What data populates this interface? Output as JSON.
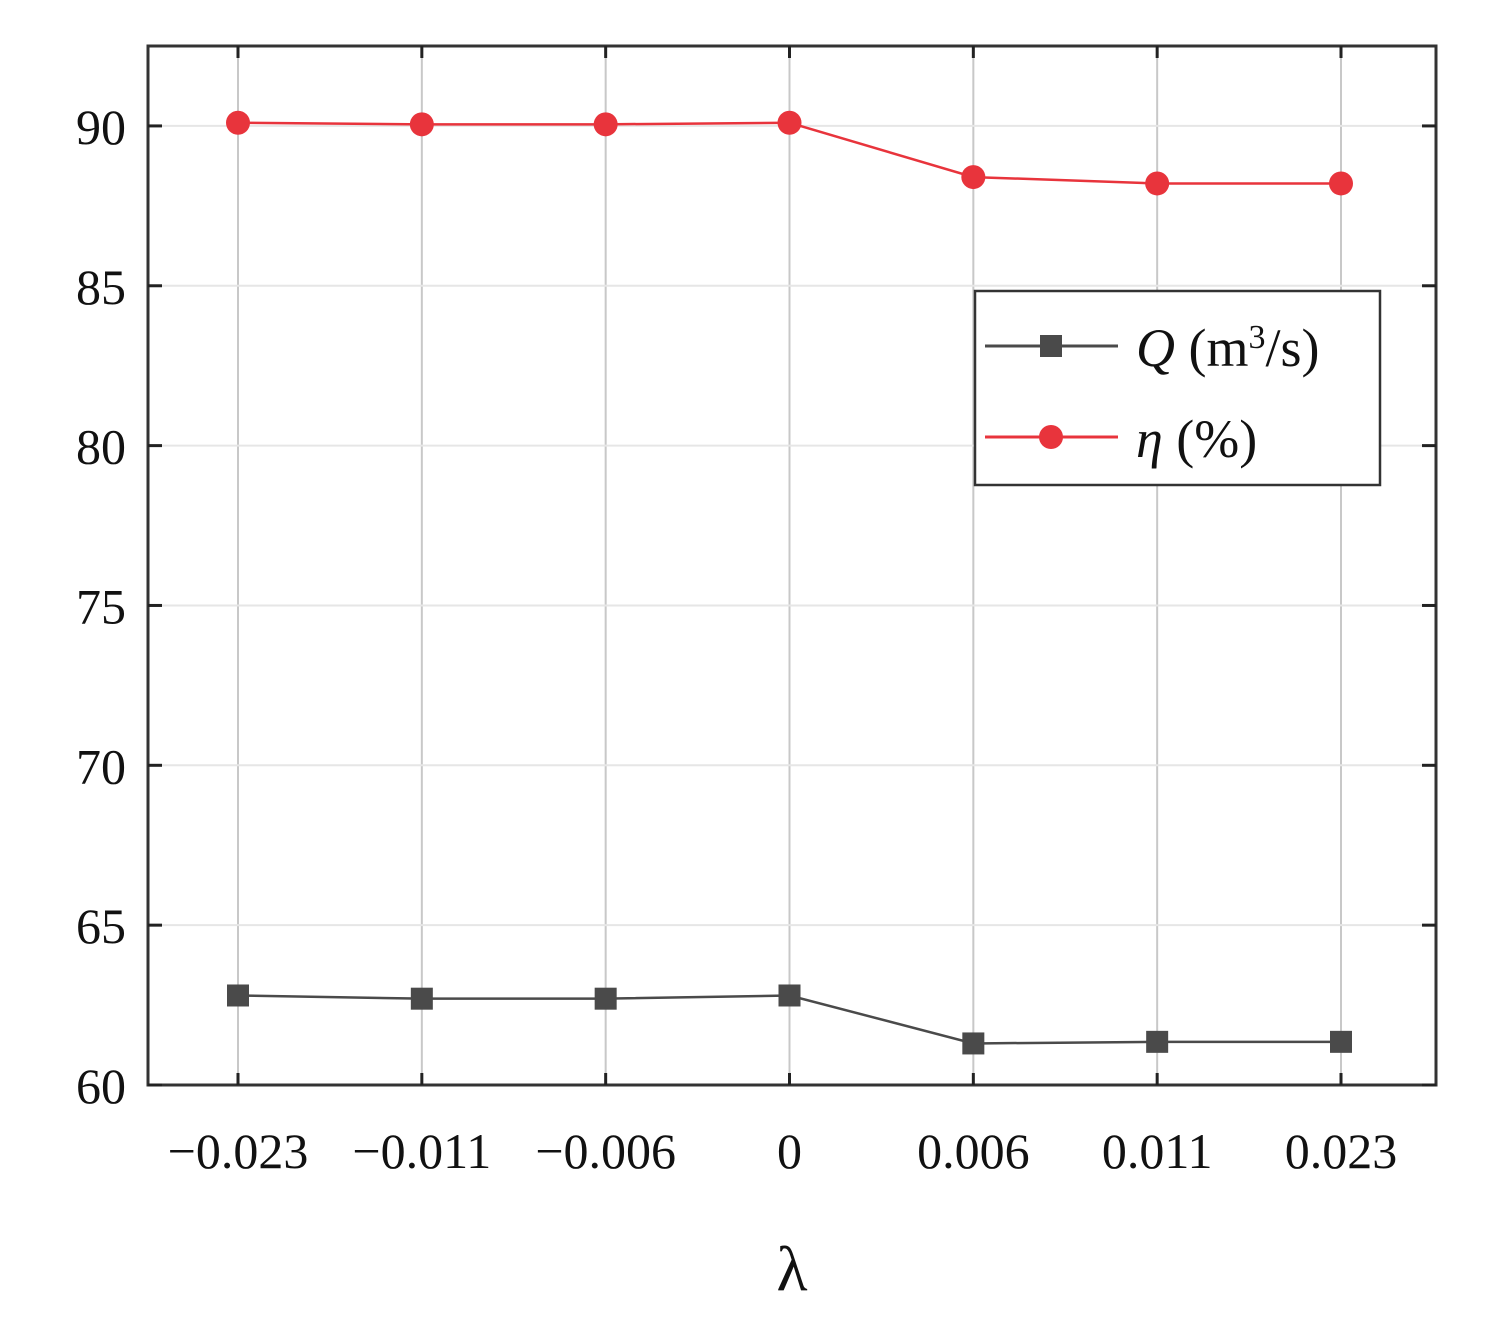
{
  "chart_data": {
    "type": "line",
    "title": "",
    "xlabel": "λ",
    "ylabel": "",
    "categories": [
      "−0.023",
      "−0.011",
      "−0.006",
      "0",
      "0.006",
      "0.011",
      "0.023"
    ],
    "ylim": [
      60,
      92.5
    ],
    "yticks": [
      60,
      65,
      70,
      75,
      80,
      85,
      90
    ],
    "grid": true,
    "legend_position": "top-right",
    "series": [
      {
        "name": "Q (m³/s)",
        "name_parts": {
          "symbol": "Q",
          "prefix": "(m",
          "sup": "3",
          "suffix": "/s)"
        },
        "marker": "square",
        "color": "#4a4a4a",
        "values": [
          62.8,
          62.7,
          62.7,
          62.8,
          61.3,
          61.35,
          61.35
        ]
      },
      {
        "name": "η (%)",
        "name_parts": {
          "symbol": "η",
          "prefix": "(%)",
          "sup": "",
          "suffix": ""
        },
        "marker": "circle",
        "color": "#e8343c",
        "values": [
          90.1,
          90.05,
          90.05,
          90.1,
          88.4,
          88.2,
          88.2
        ]
      }
    ]
  }
}
